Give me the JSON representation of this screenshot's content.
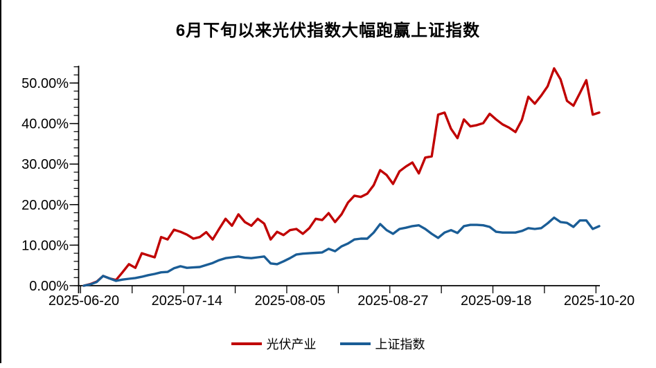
{
  "chart_data": {
    "type": "line",
    "title": "6月下旬以来光伏指数大幅跑赢上证指数",
    "xlabel": "",
    "ylabel": "",
    "y_tick_labels": [
      "0.00%",
      "10.00%",
      "20.00%",
      "30.00%",
      "40.00%",
      "50.00%"
    ],
    "y_major_values": [
      0,
      10,
      20,
      30,
      40,
      50
    ],
    "y_minor_step": 2,
    "ylim": [
      0,
      54
    ],
    "x_tick_labels": [
      "2025-06-20",
      "2025-07-14",
      "2025-08-05",
      "2025-08-27",
      "2025-09-18",
      "2025-10-20"
    ],
    "x_label_day_indexes": [
      0,
      16,
      32,
      48,
      64,
      80
    ],
    "x_minor_tick_every_days": 8,
    "n_points": 81,
    "grid": "off",
    "legend_position": "bottom-center",
    "axis_color": "#000000",
    "text_color": "#000000",
    "background_color": "#ffffff",
    "series": [
      {
        "name": "光伏产业",
        "color": "#c00000",
        "values": [
          0.0,
          0.4,
          1.0,
          2.4,
          1.8,
          1.4,
          3.3,
          5.3,
          4.4,
          8.0,
          7.5,
          7.0,
          12.0,
          11.4,
          13.8,
          13.3,
          12.6,
          11.6,
          12.0,
          13.2,
          11.4,
          14.0,
          16.5,
          14.8,
          17.6,
          15.7,
          14.8,
          16.5,
          15.3,
          11.4,
          13.3,
          12.5,
          13.7,
          14.0,
          12.8,
          14.2,
          16.5,
          16.2,
          17.9,
          15.7,
          17.6,
          20.5,
          22.2,
          21.9,
          22.7,
          24.8,
          28.5,
          27.3,
          25.1,
          28.2,
          29.4,
          30.4,
          27.7,
          31.6,
          31.9,
          42.2,
          42.7,
          38.7,
          36.4,
          41.0,
          39.3,
          39.6,
          40.1,
          42.4,
          41.0,
          39.8,
          39.0,
          37.9,
          40.9,
          46.6,
          44.9,
          46.9,
          49.2,
          53.6,
          50.9,
          45.6,
          44.4,
          47.5,
          50.7,
          42.2,
          42.7
        ]
      },
      {
        "name": "上证指数",
        "color": "#1a5d96",
        "values": [
          0.0,
          0.3,
          0.9,
          2.4,
          1.8,
          1.2,
          1.5,
          1.7,
          1.9,
          2.2,
          2.6,
          2.9,
          3.3,
          3.4,
          4.3,
          4.8,
          4.4,
          4.5,
          4.6,
          5.1,
          5.6,
          6.3,
          6.8,
          7.0,
          7.2,
          6.9,
          6.8,
          7.0,
          7.2,
          5.5,
          5.3,
          6.0,
          6.8,
          7.7,
          7.9,
          8.0,
          8.1,
          8.2,
          9.1,
          8.5,
          9.7,
          10.4,
          11.4,
          11.6,
          11.6,
          13.1,
          15.2,
          13.7,
          12.8,
          14.0,
          14.3,
          14.7,
          14.9,
          14.0,
          12.8,
          11.8,
          13.1,
          13.7,
          13.0,
          14.7,
          15.0,
          15.0,
          14.9,
          14.5,
          13.3,
          13.1,
          13.1,
          13.1,
          13.5,
          14.2,
          14.0,
          14.2,
          15.4,
          16.8,
          15.7,
          15.5,
          14.5,
          16.1,
          16.1,
          14.0,
          14.7
        ]
      }
    ]
  }
}
